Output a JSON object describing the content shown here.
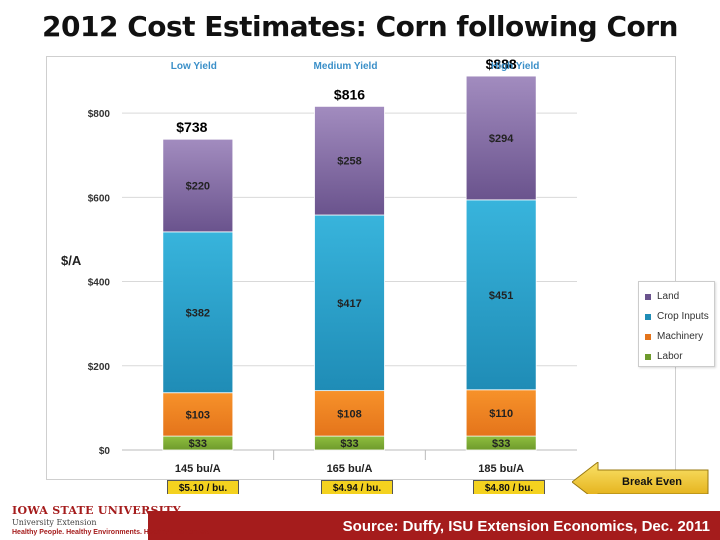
{
  "slide": {
    "title": "2012 Cost Estimates: Corn following Corn",
    "source": "Source:  Duffy, ISU Extension Economics, Dec. 2011",
    "logo_name": "IOWA STATE UNIVERSITY",
    "logo_unit": "University Extension",
    "logo_tagline": "Healthy People. Healthy Environments. Healthy Economies."
  },
  "break_even": {
    "label": "Break Even",
    "values": [
      "$5.10 / bu.",
      "$4.94 / bu.",
      "$4.80 / bu."
    ],
    "box_color": "#f4d21f",
    "arrow_color": "#f4d21f"
  },
  "chart_data": {
    "type": "bar",
    "stacked": true,
    "ylabel": "$/A",
    "ylim": [
      0,
      900
    ],
    "yticks": [
      "$0",
      "$200",
      "$400",
      "$600",
      "$800"
    ],
    "ytick_values": [
      0,
      200,
      400,
      600,
      800
    ],
    "grid": true,
    "group_labels": [
      "Low Yield",
      "Medium Yield",
      "High Yield"
    ],
    "categories": [
      "145 bu/A",
      "165 bu/A",
      "185 bu/A"
    ],
    "totals": [
      "$738",
      "$816",
      "$888"
    ],
    "total_values": [
      738,
      816,
      888
    ],
    "legend_position": "right",
    "series": [
      {
        "name": "Labor",
        "values": [
          33,
          33,
          33
        ],
        "labels": [
          "$33",
          "$33",
          "$33"
        ],
        "color": "#8fbf3f",
        "color_dark": "#6e9a2c"
      },
      {
        "name": "Machinery",
        "values": [
          103,
          108,
          110
        ],
        "labels": [
          "$103",
          "$108",
          "$110"
        ],
        "color": "#f7922a",
        "color_dark": "#e4741b"
      },
      {
        "name": "Crop Inputs",
        "values": [
          382,
          417,
          451
        ],
        "labels": [
          "$382",
          "$417",
          "$451"
        ],
        "color": "#38b4dc",
        "color_dark": "#1f8cb6"
      },
      {
        "name": "Land",
        "values": [
          220,
          258,
          294
        ],
        "labels": [
          "$220",
          "$258",
          "$294"
        ],
        "color": "#a28cbf",
        "color_dark": "#6a538d"
      }
    ],
    "legend_order": [
      "Land",
      "Crop Inputs",
      "Machinery",
      "Labor"
    ]
  }
}
